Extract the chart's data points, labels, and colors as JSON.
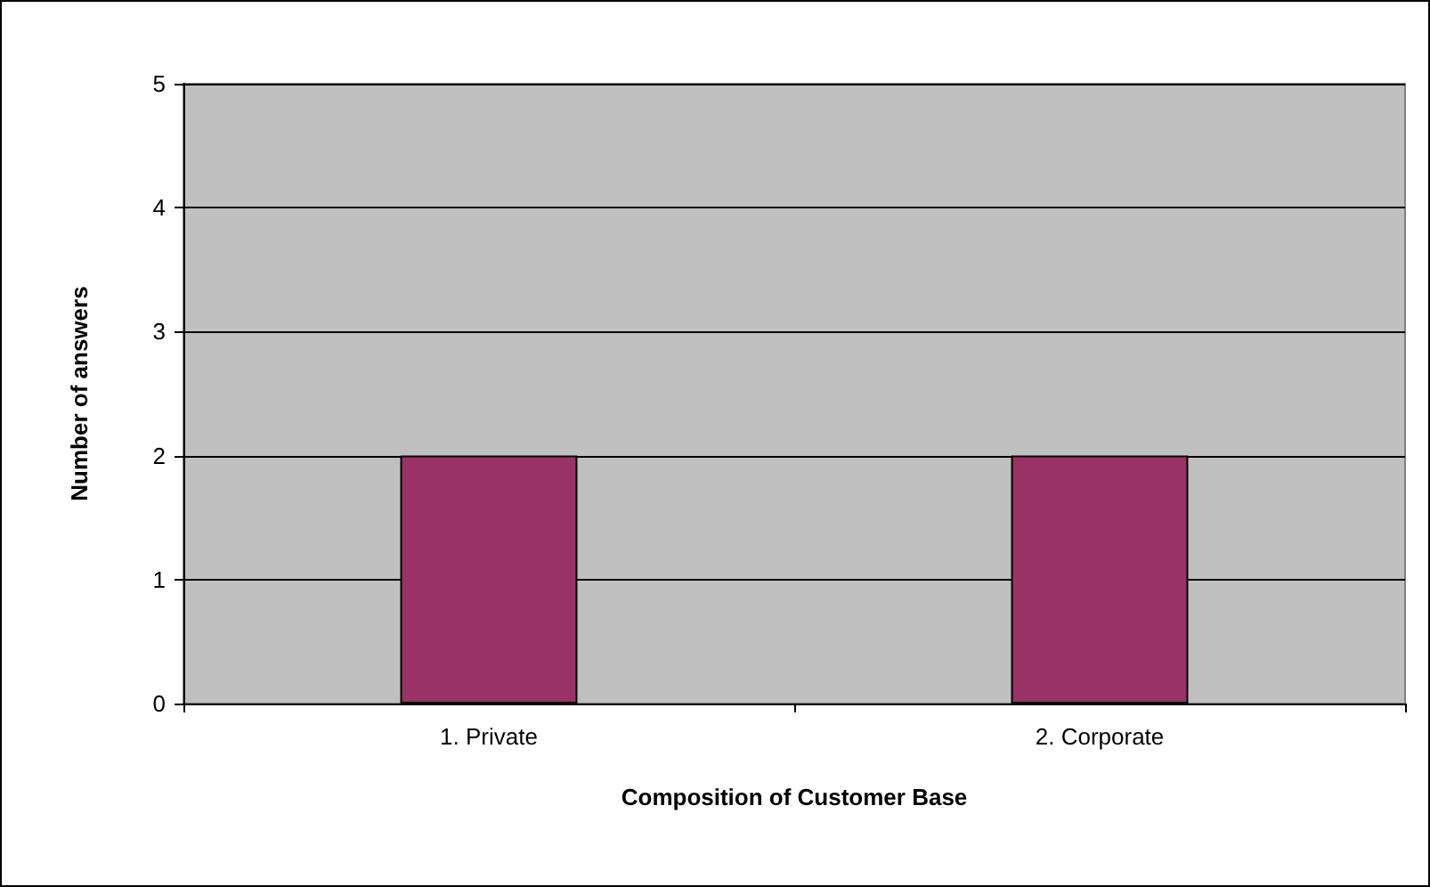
{
  "chart_data": {
    "type": "bar",
    "xlabel": "Composition of Customer Base",
    "ylabel": "Number of answers",
    "categories": [
      "1. Private",
      "2. Corporate"
    ],
    "values": [
      2,
      2
    ],
    "color": "#993366",
    "ylim": [
      0,
      5
    ],
    "yticks": [
      0,
      1,
      2,
      3,
      4,
      5
    ],
    "grid": "y"
  }
}
